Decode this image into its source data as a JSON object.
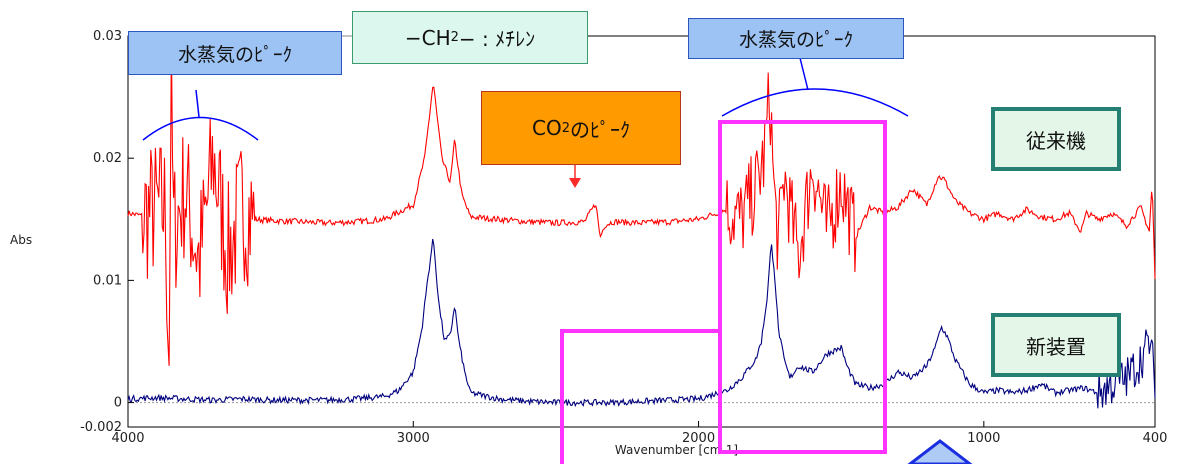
{
  "chart_data": {
    "type": "line",
    "title": "",
    "xlabel": "Wavenumber [cm-1]",
    "ylabel": "Abs",
    "xlim": [
      4000,
      400
    ],
    "ylim": [
      -0.002,
      0.03
    ],
    "x_axis_reversed": true,
    "x_ticks": [
      "4000",
      "3000",
      "2000",
      "1000",
      "400"
    ],
    "y_ticks": [
      "0.03",
      "0.02",
      "0.01",
      "0",
      "-0.002"
    ],
    "grid": false,
    "series": [
      {
        "name": "従来機",
        "color": "#ff0000",
        "x": [
          4000,
          3950,
          3900,
          3870,
          3855,
          3850,
          3840,
          3800,
          3750,
          3700,
          3650,
          3600,
          3560,
          3500,
          3400,
          3300,
          3200,
          3100,
          3000,
          2960,
          2930,
          2900,
          2870,
          2855,
          2830,
          2800,
          2700,
          2600,
          2500,
          2400,
          2360,
          2345,
          2330,
          2300,
          2200,
          2100,
          2000,
          1900,
          1850,
          1800,
          1770,
          1750,
          1735,
          1720,
          1700,
          1650,
          1600,
          1550,
          1500,
          1450,
          1400,
          1350,
          1300,
          1250,
          1200,
          1160,
          1140,
          1100,
          1050,
          1000,
          950,
          900,
          850,
          800,
          750,
          700,
          660,
          640,
          600,
          550,
          500,
          450,
          420,
          410,
          400
        ],
        "y": [
          0.0155,
          0.0153,
          0.0158,
          0.016,
          0.003,
          0.027,
          0.014,
          0.0175,
          0.0115,
          0.02,
          0.012,
          0.016,
          0.015,
          0.0149,
          0.0148,
          0.0147,
          0.0148,
          0.015,
          0.0162,
          0.02,
          0.0262,
          0.02,
          0.018,
          0.0215,
          0.017,
          0.0152,
          0.015,
          0.0148,
          0.0147,
          0.0148,
          0.0163,
          0.0135,
          0.0145,
          0.0148,
          0.0147,
          0.0148,
          0.015,
          0.0158,
          0.015,
          0.0175,
          0.02,
          0.0255,
          0.017,
          0.013,
          0.0185,
          0.012,
          0.0195,
          0.014,
          0.018,
          0.0135,
          0.016,
          0.0155,
          0.016,
          0.0175,
          0.0162,
          0.0185,
          0.0183,
          0.0165,
          0.0155,
          0.015,
          0.0155,
          0.015,
          0.0158,
          0.0152,
          0.015,
          0.0155,
          0.014,
          0.0155,
          0.015,
          0.0155,
          0.0145,
          0.016,
          0.014,
          0.018,
          0.01
        ]
      },
      {
        "name": "新装置",
        "color": "#00007f",
        "x": [
          4000,
          3900,
          3800,
          3700,
          3600,
          3500,
          3400,
          3300,
          3200,
          3100,
          3050,
          3000,
          2970,
          2950,
          2930,
          2910,
          2890,
          2870,
          2855,
          2840,
          2820,
          2800,
          2700,
          2600,
          2500,
          2400,
          2300,
          2200,
          2100,
          2000,
          1900,
          1850,
          1800,
          1780,
          1760,
          1745,
          1735,
          1720,
          1700,
          1680,
          1650,
          1600,
          1550,
          1500,
          1480,
          1450,
          1400,
          1350,
          1300,
          1250,
          1200,
          1170,
          1150,
          1130,
          1100,
          1050,
          1000,
          950,
          900,
          850,
          800,
          750,
          700,
          650,
          600,
          550,
          500,
          450,
          420,
          400
        ],
        "y": [
          0.0003,
          0.0004,
          0.0003,
          0.0002,
          0.0003,
          0.0002,
          0.0002,
          0.0002,
          0.0003,
          0.0005,
          0.001,
          0.0025,
          0.006,
          0.01,
          0.0135,
          0.008,
          0.005,
          0.0055,
          0.008,
          0.005,
          0.0025,
          0.0008,
          0.0003,
          0.0001,
          0.0,
          0.0,
          0.0,
          0.0001,
          0.0002,
          0.0003,
          0.001,
          0.002,
          0.0035,
          0.005,
          0.0085,
          0.013,
          0.011,
          0.006,
          0.0035,
          0.002,
          0.003,
          0.0025,
          0.004,
          0.0045,
          0.003,
          0.0015,
          0.0012,
          0.0015,
          0.0025,
          0.002,
          0.003,
          0.0045,
          0.0062,
          0.0055,
          0.0035,
          0.0015,
          0.0008,
          0.001,
          0.0008,
          0.001,
          0.0015,
          0.0008,
          0.001,
          0.0012,
          0.0008,
          0.0015,
          0.002,
          0.0035,
          0.005,
          0.002
        ]
      }
    ],
    "noise_regions_absorbance": [
      {
        "series": "従来機",
        "from": 3950,
        "to": 3560,
        "amplitude": 0.006
      },
      {
        "series": "従来機",
        "from": 1900,
        "to": 1450,
        "amplitude": 0.0035
      },
      {
        "series": "新装置",
        "from": 600,
        "to": 400,
        "amplitude": 0.0018
      }
    ],
    "zero_reference_line": 0
  },
  "annotations": {
    "peak_label_left": "水蒸気のﾋﾟｰｸ",
    "peak_label_right": "水蒸気のﾋﾟｰｸ",
    "methylene_prefix": "−CH",
    "methylene_sub": "2",
    "methylene_suffix": "− : ﾒﾁﾚﾝ",
    "co2_prefix": "CO",
    "co2_sub": "2",
    "co2_suffix": "のﾋﾟｰｸ",
    "label_conventional": "従来機",
    "label_new": "新装置"
  },
  "colors": {
    "magenta_box": "#ff33ff",
    "bracket": "#0000ff",
    "arrow": "#ff2a2a",
    "axis": "#000000"
  }
}
